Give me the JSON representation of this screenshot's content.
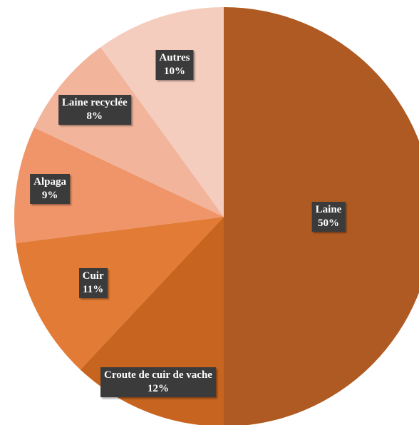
{
  "chart_data": {
    "type": "pie",
    "categories": [
      "Laine",
      "Croute de cuir de vache",
      "Cuir",
      "Alpaga",
      "Laine recyclée",
      "Autres"
    ],
    "values": [
      50,
      12,
      11,
      9,
      8,
      10
    ],
    "value_labels": [
      "50%",
      "12%",
      "11%",
      "9%",
      "8%",
      "10%"
    ],
    "colors": [
      "#ae5a22",
      "#c7641f",
      "#e27b35",
      "#ef9569",
      "#f2b49b",
      "#f5cdbe"
    ]
  }
}
